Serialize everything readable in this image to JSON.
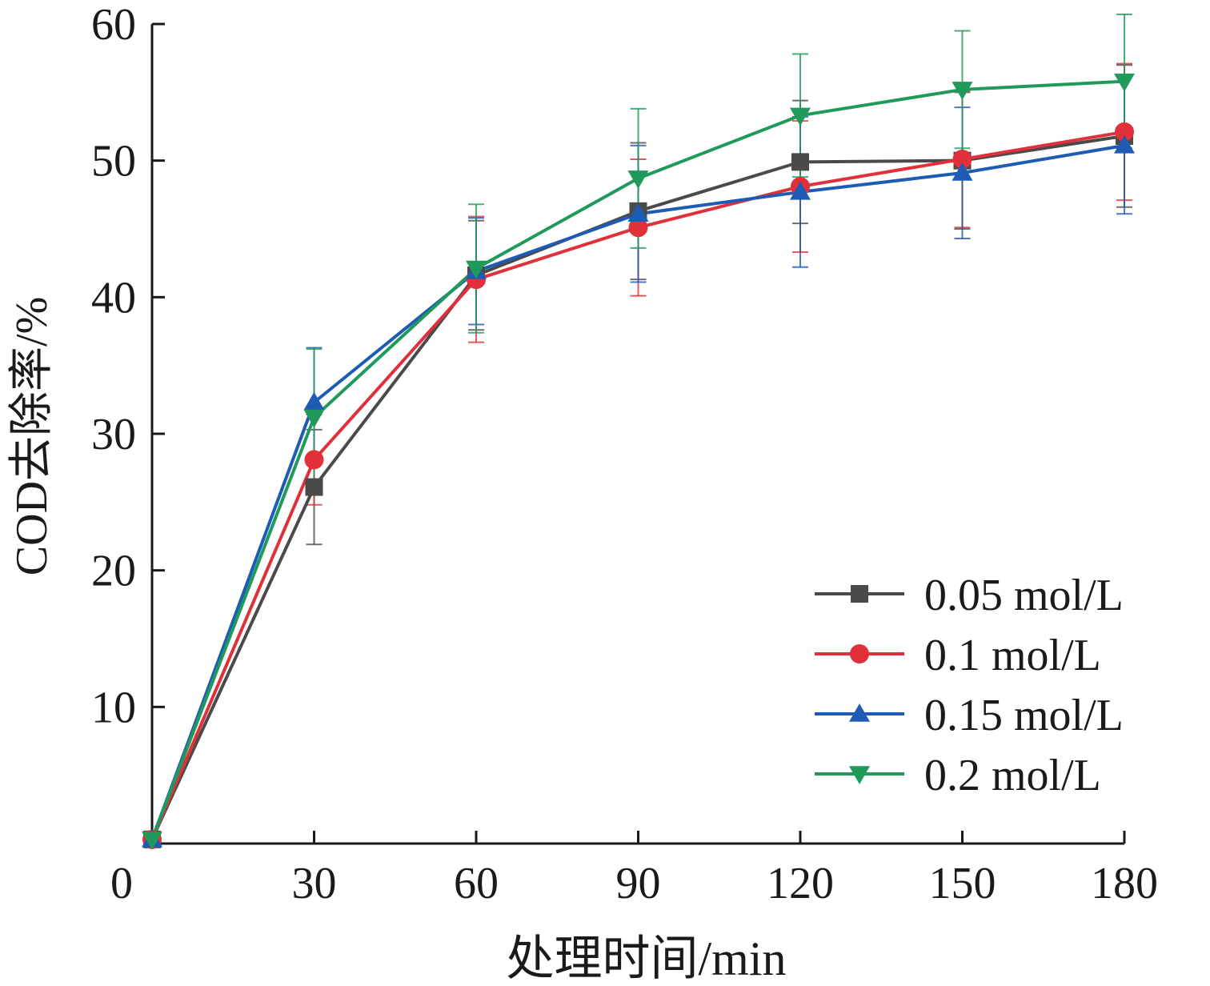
{
  "chart_data": {
    "type": "line",
    "title": "",
    "xlabel": "处理时间/min",
    "ylabel": "COD去除率/%",
    "x_ticks": [
      "0",
      "30",
      "60",
      "90",
      "120",
      "150",
      "180"
    ],
    "y_ticks": [
      "10",
      "20",
      "30",
      "40",
      "50",
      "60"
    ],
    "xlim": [
      0,
      180
    ],
    "ylim": [
      0,
      60
    ],
    "grid": false,
    "legend_position": "bottom-right",
    "x": [
      0,
      30,
      60,
      90,
      120,
      150,
      180
    ],
    "series": [
      {
        "name": "0.05 mol/L",
        "color": "#4a4a4a",
        "marker": "square",
        "values": [
          0.3,
          26.1,
          41.6,
          46.3,
          49.9,
          50.0,
          51.8
        ],
        "error": [
          0,
          4.2,
          4.0,
          5.0,
          4.5,
          5.0,
          5.2
        ]
      },
      {
        "name": "0.1 mol/L",
        "color": "#e0303a",
        "marker": "circle",
        "values": [
          0.3,
          28.1,
          41.3,
          45.1,
          48.1,
          50.1,
          52.1
        ],
        "error": [
          0,
          3.3,
          4.6,
          5.0,
          4.8,
          5.0,
          5.0
        ]
      },
      {
        "name": "0.15 mol/L",
        "color": "#1e5bb5",
        "marker": "triangle-up",
        "values": [
          0.3,
          32.3,
          41.9,
          46.1,
          47.7,
          49.1,
          51.1
        ],
        "error": [
          0,
          4.0,
          3.9,
          5.0,
          5.5,
          4.8,
          5.0
        ]
      },
      {
        "name": "0.2 mol/L",
        "color": "#1f9a5a",
        "marker": "triangle-down",
        "values": [
          0.3,
          31.2,
          42.1,
          48.7,
          53.3,
          55.2,
          55.8
        ],
        "error": [
          0,
          5.0,
          4.7,
          5.1,
          4.5,
          4.3,
          4.9
        ]
      }
    ]
  }
}
